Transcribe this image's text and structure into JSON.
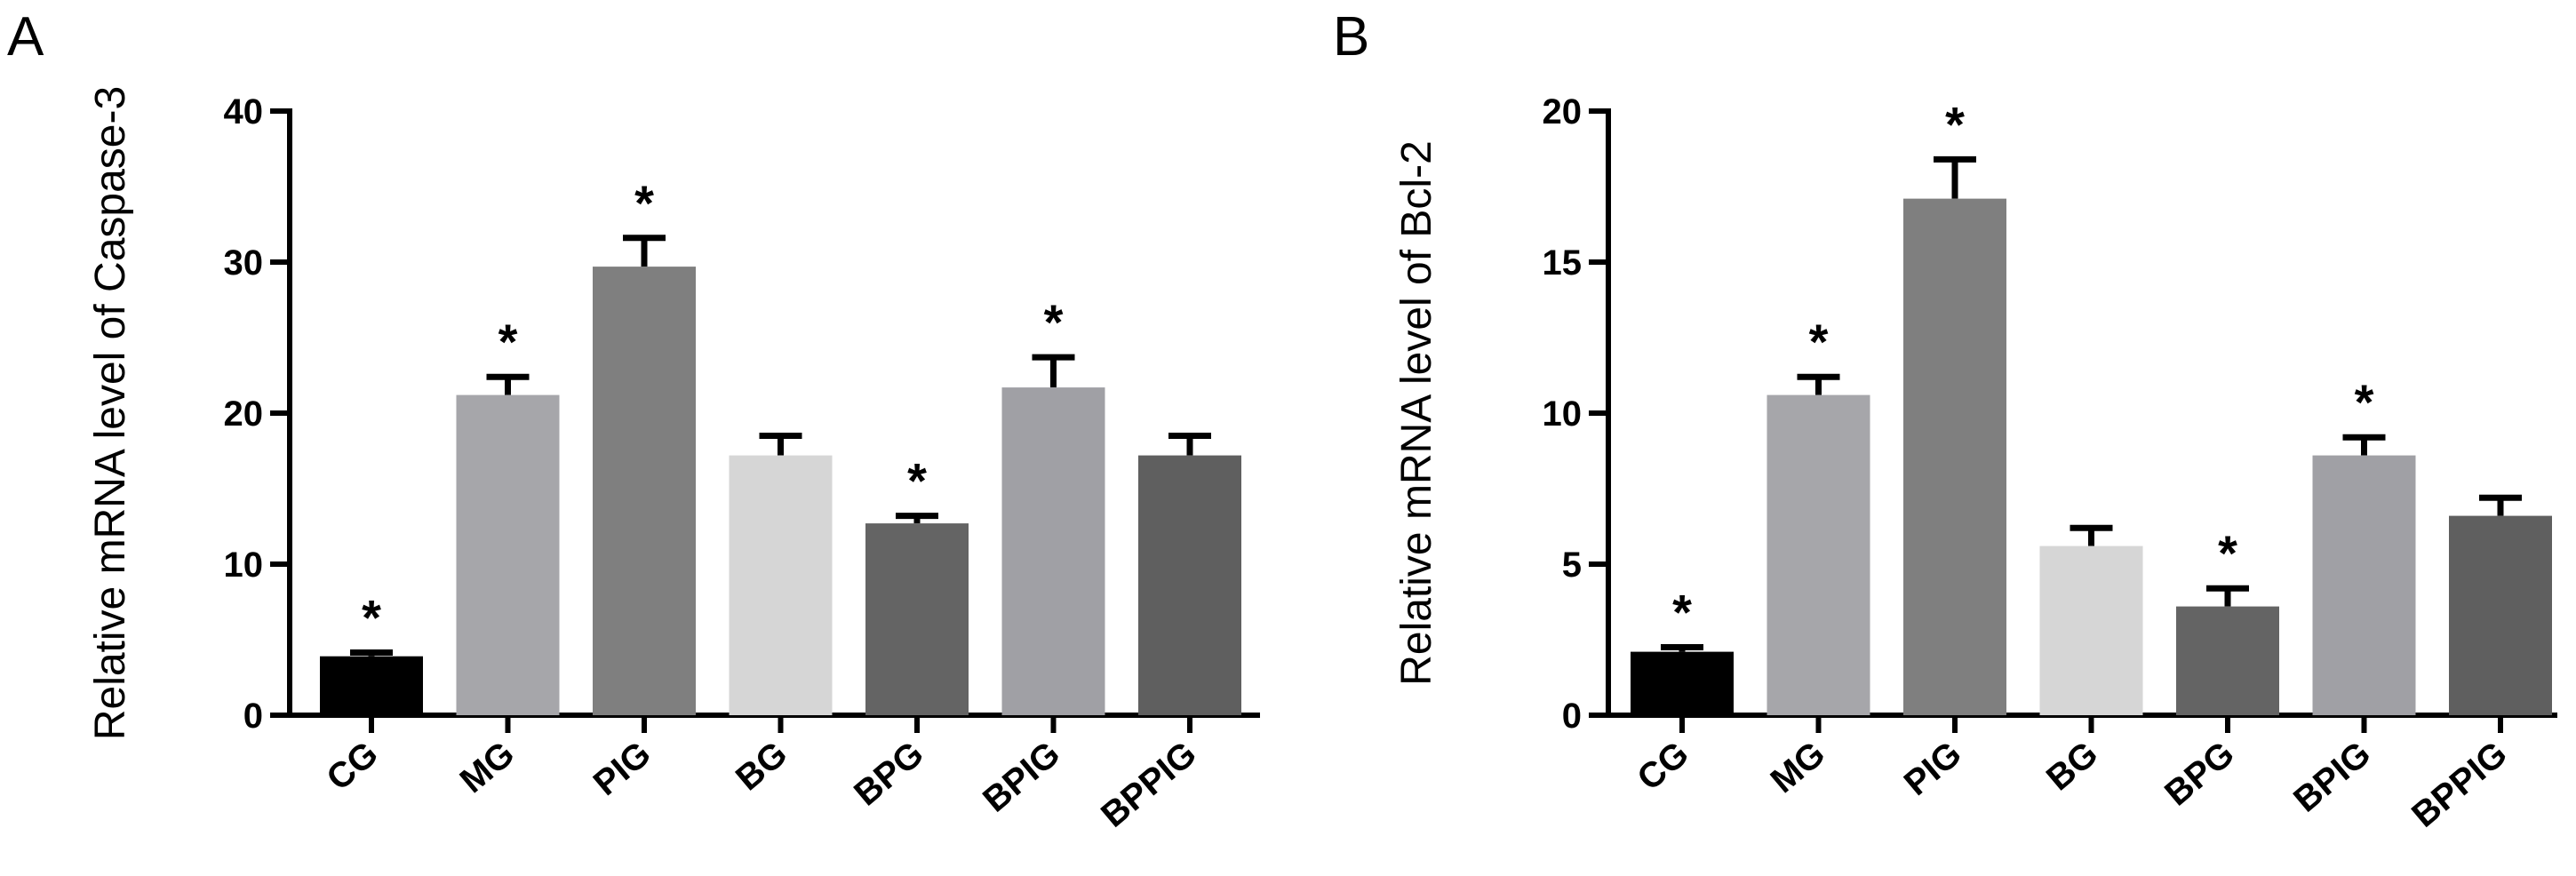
{
  "chart_data": [
    {
      "type": "bar",
      "panel_label": "A",
      "title": "",
      "xlabel": "",
      "ylabel": "Relative mRNA level of Caspase-3",
      "ylim": [
        0,
        40
      ],
      "yticks": [
        "0",
        "10",
        "20",
        "30",
        "40"
      ],
      "grid": false,
      "categories": [
        "CG",
        "MG",
        "PIG",
        "BG",
        "BPG",
        "BPIG",
        "BPPIG"
      ],
      "values": [
        3.9,
        21.2,
        29.7,
        17.2,
        12.7,
        21.7,
        17.2
      ],
      "errors": [
        0.25,
        1.2,
        1.9,
        1.3,
        0.5,
        2.0,
        1.3
      ],
      "significance": [
        "*",
        "*",
        "*",
        "",
        "*",
        "*",
        ""
      ],
      "colors": [
        "#000000",
        "#a6a6aa",
        "#7f7f7f",
        "#d6d6d6",
        "#646464",
        "#a0a0a5",
        "#5f5f5f"
      ]
    },
    {
      "type": "bar",
      "panel_label": "B",
      "title": "",
      "xlabel": "",
      "ylabel": "Relative mRNA level of Bcl-2",
      "ylim": [
        0,
        20
      ],
      "yticks": [
        "0",
        "5",
        "10",
        "15",
        "20"
      ],
      "grid": false,
      "categories": [
        "CG",
        "MG",
        "PIG",
        "BG",
        "BPG",
        "BPIG",
        "BPPIG"
      ],
      "values": [
        2.1,
        10.6,
        17.1,
        5.6,
        3.6,
        8.6,
        6.6
      ],
      "errors": [
        0.15,
        0.6,
        1.3,
        0.6,
        0.6,
        0.6,
        0.6
      ],
      "significance": [
        "*",
        "*",
        "*",
        "",
        "*",
        "*",
        ""
      ],
      "colors": [
        "#000000",
        "#a6a6aa",
        "#7f7f7f",
        "#d6d6d6",
        "#646464",
        "#a0a0a5",
        "#5f5f5f"
      ]
    }
  ]
}
